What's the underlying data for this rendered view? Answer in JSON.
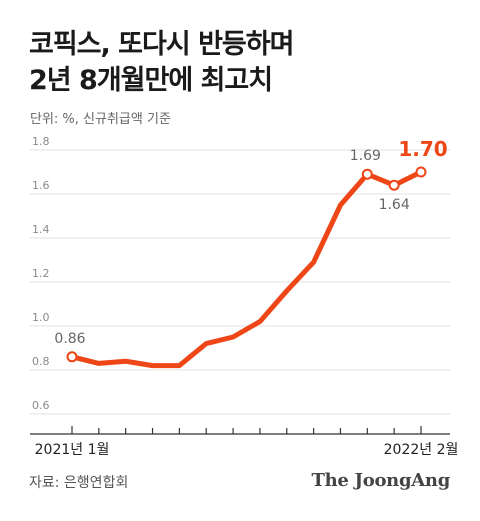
{
  "header": {
    "title_line1": "코픽스, 또다시 반등하며",
    "title_line2": "2년 8개월만에 최고치",
    "unit_note": "단위: %, 신규취급액 기준"
  },
  "footer": {
    "source": "자료: 은행연합회",
    "logo": "The JoongAng"
  },
  "colors": {
    "line": "#ee4616",
    "highlight": "#ee4616",
    "label": "#666666",
    "grid": "#e1e1e1"
  },
  "chart_data": {
    "type": "line",
    "title": "코픽스, 또다시 반등하며 2년 8개월만에 최고치",
    "subtitle": "단위: %, 신규취급액 기준",
    "ylim": [
      0.6,
      1.8
    ],
    "yticks": [
      0.6,
      0.8,
      1.0,
      1.2,
      1.4,
      1.6,
      1.8
    ],
    "ytick_labels": [
      "0.6",
      "0.8",
      "1.0",
      "1.2",
      "1.4",
      "1.6",
      "1.8"
    ],
    "x": [
      "2021-01",
      "2021-02",
      "2021-03",
      "2021-04",
      "2021-05",
      "2021-06",
      "2021-07",
      "2021-08",
      "2021-09",
      "2021-10",
      "2021-11",
      "2021-12",
      "2022-01",
      "2022-02"
    ],
    "x_labels": {
      "first": "2021년 1월",
      "last": "2022년 2월"
    },
    "series": [
      {
        "values": [
          0.86,
          0.83,
          0.84,
          0.82,
          0.82,
          0.92,
          0.95,
          1.02,
          1.16,
          1.29,
          1.55,
          1.69,
          1.64,
          1.7
        ]
      }
    ],
    "labels": [
      {
        "index": 0,
        "text": "0.86"
      },
      {
        "index": 11,
        "text": "1.69"
      },
      {
        "index": 12,
        "text": "1.64"
      },
      {
        "index": 13,
        "text": "1.70",
        "highlight": true
      }
    ],
    "grid": true
  }
}
